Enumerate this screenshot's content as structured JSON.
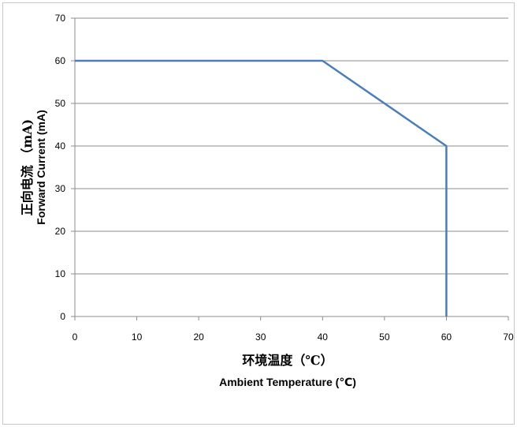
{
  "chart_data": {
    "type": "line",
    "title": "",
    "xlabel_cn": "环境温度（℃）",
    "xlabel_en": "Ambient Temperature (℃)",
    "ylabel_cn": "正向电流 （mA)",
    "ylabel_en": "Forward Current (mA)",
    "xlim": [
      0,
      70
    ],
    "ylim": [
      0,
      70
    ],
    "xticks": [
      0,
      10,
      20,
      30,
      40,
      50,
      60,
      70
    ],
    "yticks": [
      0,
      10,
      20,
      30,
      40,
      50,
      60,
      70
    ],
    "grid": "horizontal",
    "series": [
      {
        "color": "#4a7ebb",
        "x": [
          0,
          40,
          60,
          60
        ],
        "y": [
          60,
          60,
          40,
          0
        ]
      }
    ]
  }
}
